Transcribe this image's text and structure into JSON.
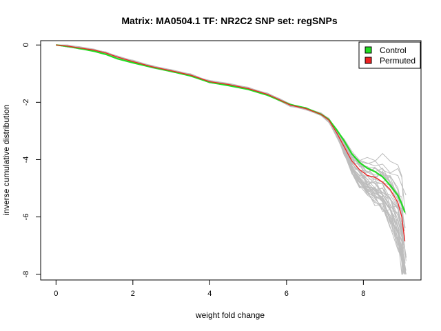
{
  "chart_data": {
    "type": "line",
    "title": "Matrix: MA0504.1 TF: NR2C2 SNP set: regSNPs",
    "xlabel": "weight fold change",
    "ylabel": "inverse cumulative distribution",
    "xlim": [
      -0.4,
      9.5
    ],
    "ylim": [
      -8.2,
      0.15
    ],
    "x_ticks": [
      0,
      2,
      4,
      6,
      8
    ],
    "y_ticks": [
      0,
      -2,
      -4,
      -6,
      -8
    ],
    "x_tick_labels": [
      "0",
      "2",
      "4",
      "6",
      "8"
    ],
    "y_tick_labels": [
      "0",
      "-2",
      "-4",
      "-6",
      "-8"
    ],
    "grid": false,
    "legend_position": "top-right",
    "legend": [
      {
        "label": "Control",
        "color": "#22dd22"
      },
      {
        "label": "Permuted",
        "color": "#ee2222"
      }
    ],
    "background_curves": {
      "count": 40,
      "color": "#bdbdbd"
    },
    "series": [
      {
        "name": "Control",
        "color": "#22dd22",
        "x": [
          0,
          0.3,
          0.6,
          1.0,
          1.3,
          1.6,
          2.0,
          2.5,
          3.0,
          3.5,
          4.0,
          4.5,
          5.0,
          5.5,
          5.8,
          6.1,
          6.5,
          6.9,
          7.1,
          7.3,
          7.5,
          7.7,
          7.9,
          8.1,
          8.3,
          8.5,
          8.7,
          8.9,
          9.0,
          9.08
        ],
        "y": [
          0,
          -0.05,
          -0.12,
          -0.22,
          -0.33,
          -0.48,
          -0.62,
          -0.78,
          -0.92,
          -1.08,
          -1.3,
          -1.42,
          -1.55,
          -1.75,
          -1.92,
          -2.08,
          -2.2,
          -2.42,
          -2.6,
          -2.95,
          -3.35,
          -3.8,
          -4.1,
          -4.3,
          -4.42,
          -4.6,
          -4.9,
          -5.25,
          -5.55,
          -5.85
        ]
      },
      {
        "name": "Permuted",
        "color": "#ee2222",
        "x": [
          0,
          0.3,
          0.6,
          1.0,
          1.3,
          1.6,
          2.0,
          2.5,
          3.0,
          3.5,
          4.0,
          4.5,
          5.0,
          5.5,
          5.8,
          6.1,
          6.5,
          6.9,
          7.1,
          7.3,
          7.5,
          7.7,
          7.9,
          8.1,
          8.3,
          8.5,
          8.7,
          8.9,
          9.0,
          9.08
        ],
        "y": [
          0,
          -0.04,
          -0.1,
          -0.18,
          -0.28,
          -0.42,
          -0.58,
          -0.76,
          -0.9,
          -1.05,
          -1.28,
          -1.38,
          -1.52,
          -1.72,
          -1.9,
          -2.1,
          -2.22,
          -2.42,
          -2.62,
          -3.05,
          -3.55,
          -4.05,
          -4.35,
          -4.55,
          -4.62,
          -4.78,
          -5.05,
          -5.5,
          -6.0,
          -6.85
        ]
      }
    ]
  }
}
